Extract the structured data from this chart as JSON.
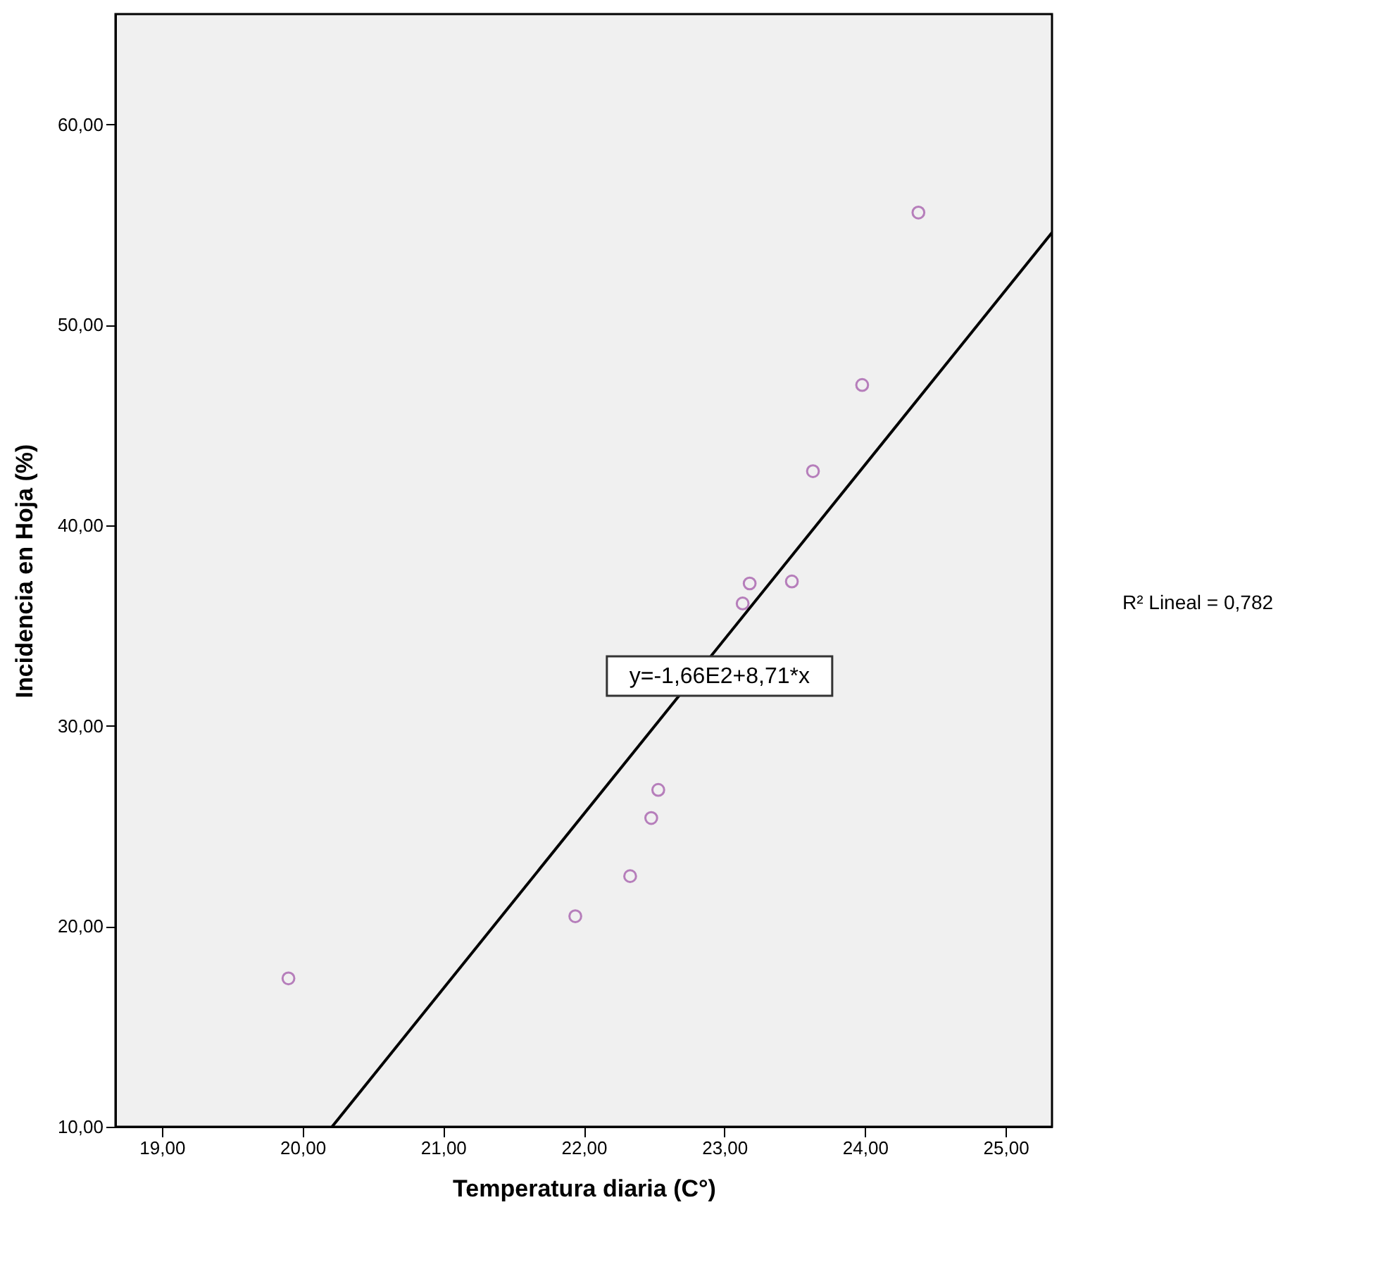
{
  "chart_data": {
    "type": "scatter",
    "xlabel": "Temperatura diaria (C°)",
    "ylabel": "Incidencia en Hoja (%)",
    "x": [
      19.9,
      21.94,
      22.33,
      22.48,
      22.53,
      23.13,
      23.18,
      23.48,
      23.63,
      23.98,
      24.38
    ],
    "series": [
      {
        "color": "#9e4fa5",
        "marker": "circle",
        "values": [
          17.4,
          20.5,
          22.5,
          25.4,
          26.8,
          36.1,
          37.1,
          37.2,
          42.7,
          47.0,
          55.6
        ]
      },
      {
        "type": "line",
        "color": "#000000",
        "line_style": "solid",
        "x": [
          20.21,
          25.33
        ],
        "values": [
          10.0,
          54.6
        ]
      }
    ],
    "xlim": [
      18.67,
      25.33
    ],
    "ylim": [
      10,
      65.5
    ],
    "xticks": [
      {
        "value": 19,
        "label": "19,00"
      },
      {
        "value": 20,
        "label": "20,00"
      },
      {
        "value": 21,
        "label": "21,00"
      },
      {
        "value": 22,
        "label": "22,00"
      },
      {
        "value": 23,
        "label": "23,00"
      },
      {
        "value": 24,
        "label": "24,00"
      },
      {
        "value": 25,
        "label": "25,00"
      }
    ],
    "yticks": [
      {
        "value": 10,
        "label": "10,00"
      },
      {
        "value": 20,
        "label": "20,00"
      },
      {
        "value": 30,
        "label": "30,00"
      },
      {
        "value": 40,
        "label": "40,00"
      },
      {
        "value": 50,
        "label": "50,00"
      },
      {
        "value": 60,
        "label": "60,00"
      }
    ],
    "annotations": [
      "y=-1,66E2+8,71*x",
      "R² Lineal = 0,782"
    ],
    "grid": false
  }
}
